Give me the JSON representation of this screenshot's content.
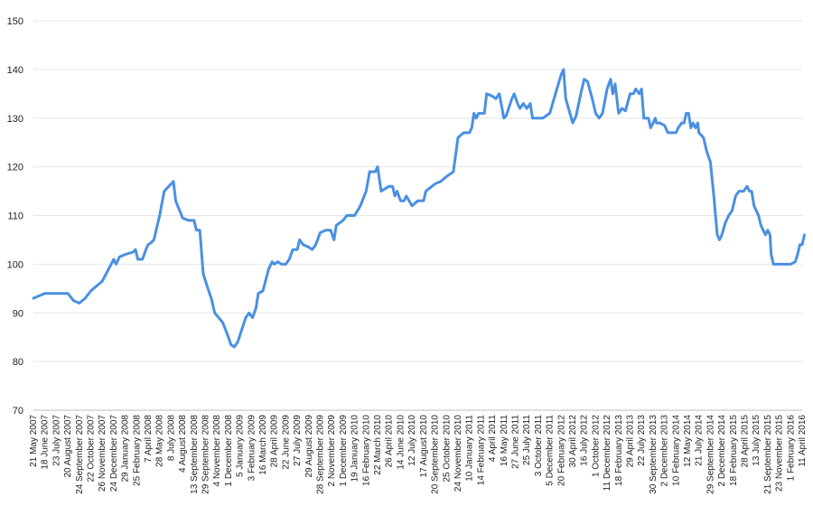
{
  "chart_data": {
    "type": "line",
    "title": "",
    "xlabel": "",
    "ylabel": "",
    "ylim": [
      70,
      150
    ],
    "yticks": [
      70,
      80,
      90,
      100,
      110,
      120,
      130,
      140,
      150
    ],
    "grid": true,
    "legend": "none",
    "colors": {
      "line": "#4a90e2",
      "grid": "#e6e6e6",
      "text": "#222222"
    },
    "x_tick_labels": [
      "21 May 2007",
      "18 June 2007",
      "23 July 2007",
      "20 August 2007",
      "24 September 2007",
      "22 October 2007",
      "26 November 2007",
      "24 December 2007",
      "29 January 2008",
      "25 February 2008",
      "7 April 2008",
      "28 May 2008",
      "8 July 2008",
      "4 August 2008",
      "13 September 2008",
      "29 September 2008",
      "4 November 2008",
      "1 December 2008",
      "5 January 2009",
      "3 February 2009",
      "16 March 2009",
      "28 April 2009",
      "22 June 2009",
      "27 July 2009",
      "29 August 2009",
      "28 September 2009",
      "2 November 2009",
      "1 December 2009",
      "19 January 2010",
      "16 February 2010",
      "22 March 2010",
      "26 April 2010",
      "14 June 2010",
      "12 July 2010",
      "17 August 2010",
      "20 September 2010",
      "25 October 2010",
      "24 November 2010",
      "10 January 2011",
      "14 February 2011",
      "4 April 2011",
      "16 May 2011",
      "27 June 2011",
      "25 July 2011",
      "3 October 2011",
      "5 December 2011",
      "20 February 2012",
      "30 April 2012",
      "16 July 2012",
      "1 October 2012",
      "11 December 2012",
      "18 February 2013",
      "29 April 2013",
      "22 July 2013",
      "30 September 2013",
      "2 December 2013",
      "10 February 2014",
      "12 May 2014",
      "21 July 2014",
      "29 September 2014",
      "2 December 2014",
      "18 February 2015",
      "28 April 2015",
      "13 July 2015",
      "21 September 2015",
      "23 November 2015",
      "1 February 2016",
      "11 April 2016"
    ],
    "series": [
      {
        "values": [
          [
            0,
            93
          ],
          [
            0.5,
            93.5
          ],
          [
            1,
            94
          ],
          [
            2,
            94
          ],
          [
            3,
            94
          ],
          [
            3.5,
            92.5
          ],
          [
            4,
            92
          ],
          [
            4.5,
            93
          ],
          [
            5,
            94.5
          ],
          [
            6,
            96.5
          ],
          [
            7,
            101
          ],
          [
            7.2,
            100
          ],
          [
            7.5,
            101.5
          ],
          [
            8,
            102
          ],
          [
            8.7,
            102.5
          ],
          [
            8.9,
            103
          ],
          [
            9.1,
            101
          ],
          [
            9.5,
            101
          ],
          [
            9.8,
            103
          ],
          [
            10,
            104
          ],
          [
            10.3,
            104.5
          ],
          [
            10.5,
            105
          ],
          [
            11,
            110
          ],
          [
            11.4,
            115
          ],
          [
            11.8,
            116
          ],
          [
            12.2,
            117
          ],
          [
            12.4,
            113
          ],
          [
            13,
            109.5
          ],
          [
            13.5,
            109
          ],
          [
            14,
            109
          ],
          [
            14.2,
            107
          ],
          [
            14.5,
            107
          ],
          [
            14.8,
            98
          ],
          [
            15.2,
            95
          ],
          [
            15.5,
            93
          ],
          [
            15.8,
            90
          ],
          [
            16.5,
            88
          ],
          [
            17,
            85
          ],
          [
            17.2,
            83.5
          ],
          [
            17.5,
            83
          ],
          [
            17.8,
            84
          ],
          [
            18.5,
            89
          ],
          [
            18.8,
            90
          ],
          [
            19.1,
            89
          ],
          [
            19.4,
            91
          ],
          [
            19.6,
            94
          ],
          [
            20,
            94.5
          ],
          [
            20.5,
            99
          ],
          [
            20.8,
            100.5
          ],
          [
            21,
            100
          ],
          [
            21.3,
            100.5
          ],
          [
            21.6,
            100
          ],
          [
            22,
            100
          ],
          [
            22.3,
            101
          ],
          [
            22.6,
            103
          ],
          [
            23,
            103
          ],
          [
            23.2,
            105
          ],
          [
            23.5,
            104
          ],
          [
            24,
            103.5
          ],
          [
            24.3,
            103
          ],
          [
            24.6,
            104
          ],
          [
            25,
            106.5
          ],
          [
            25.5,
            107
          ],
          [
            25.9,
            107
          ],
          [
            26.2,
            105
          ],
          [
            26.4,
            108
          ],
          [
            27,
            109
          ],
          [
            27.3,
            110
          ],
          [
            28,
            110
          ],
          [
            28.5,
            112
          ],
          [
            29,
            115
          ],
          [
            29.3,
            119
          ],
          [
            29.8,
            119
          ],
          [
            30,
            120
          ],
          [
            30.3,
            115
          ],
          [
            31,
            116
          ],
          [
            31.3,
            116
          ],
          [
            31.5,
            114
          ],
          [
            31.7,
            115
          ],
          [
            32,
            113
          ],
          [
            32.3,
            113
          ],
          [
            32.5,
            114
          ],
          [
            33,
            112
          ],
          [
            33.5,
            113
          ],
          [
            34,
            113
          ],
          [
            34.2,
            115
          ],
          [
            35,
            116.5
          ],
          [
            35.5,
            117
          ],
          [
            36,
            118
          ],
          [
            36.3,
            118.5
          ],
          [
            36.6,
            119
          ],
          [
            37,
            126
          ],
          [
            37.5,
            127
          ],
          [
            38,
            127
          ],
          [
            38.2,
            128
          ],
          [
            38.4,
            131
          ],
          [
            38.6,
            130
          ],
          [
            38.8,
            131
          ],
          [
            39.3,
            131
          ],
          [
            39.5,
            135
          ],
          [
            40,
            134.5
          ],
          [
            40.3,
            134
          ],
          [
            40.6,
            135
          ],
          [
            41,
            130
          ],
          [
            41.2,
            130.5
          ],
          [
            41.7,
            134
          ],
          [
            41.9,
            135
          ],
          [
            42.2,
            133
          ],
          [
            42.4,
            132
          ],
          [
            42.7,
            133
          ],
          [
            43,
            132
          ],
          [
            43.3,
            133
          ],
          [
            43.5,
            130
          ],
          [
            44,
            130
          ],
          [
            44.4,
            130
          ],
          [
            45,
            131
          ],
          [
            45.5,
            135
          ],
          [
            46,
            139
          ],
          [
            46.2,
            140
          ],
          [
            46.4,
            134
          ],
          [
            47,
            129
          ],
          [
            47.3,
            130.5
          ],
          [
            47.7,
            135
          ],
          [
            48,
            138
          ],
          [
            48.3,
            137.5
          ],
          [
            48.7,
            134
          ],
          [
            49,
            131
          ],
          [
            49.3,
            130
          ],
          [
            49.6,
            131
          ],
          [
            50,
            136
          ],
          [
            50.3,
            138
          ],
          [
            50.5,
            135
          ],
          [
            50.7,
            137
          ],
          [
            51,
            131
          ],
          [
            51.3,
            132
          ],
          [
            51.6,
            131.5
          ],
          [
            52,
            135
          ],
          [
            52.3,
            135
          ],
          [
            52.5,
            136
          ],
          [
            52.8,
            135
          ],
          [
            53,
            136
          ],
          [
            53.2,
            130
          ],
          [
            53.6,
            130
          ],
          [
            53.8,
            128
          ],
          [
            54,
            129
          ],
          [
            54.2,
            130
          ],
          [
            54.3,
            129
          ],
          [
            54.6,
            129
          ],
          [
            55,
            128.5
          ],
          [
            55.3,
            127
          ],
          [
            55.7,
            127
          ],
          [
            56,
            127
          ],
          [
            56.2,
            128
          ],
          [
            56.5,
            129
          ],
          [
            56.7,
            129
          ],
          [
            56.9,
            131
          ],
          [
            57.1,
            131
          ],
          [
            57.3,
            128
          ],
          [
            57.5,
            129
          ],
          [
            57.7,
            128
          ],
          [
            57.9,
            129
          ],
          [
            58,
            127
          ],
          [
            58.4,
            126
          ],
          [
            58.7,
            123
          ],
          [
            59,
            121
          ],
          [
            59.3,
            114
          ],
          [
            59.6,
            106
          ],
          [
            59.8,
            105
          ],
          [
            60,
            106
          ],
          [
            60.3,
            108.5
          ],
          [
            60.6,
            110
          ],
          [
            60.9,
            111
          ],
          [
            61.2,
            114
          ],
          [
            61.5,
            115
          ],
          [
            61.9,
            115
          ],
          [
            62.2,
            116
          ],
          [
            62.4,
            115
          ],
          [
            62.6,
            115
          ],
          [
            62.8,
            112
          ],
          [
            63,
            111
          ],
          [
            63.2,
            110
          ],
          [
            63.4,
            108
          ],
          [
            63.6,
            107
          ],
          [
            63.8,
            106
          ],
          [
            64,
            107
          ],
          [
            64.2,
            106
          ],
          [
            64.3,
            102
          ],
          [
            64.5,
            100
          ],
          [
            65,
            100
          ],
          [
            66,
            100
          ],
          [
            66.4,
            100.5
          ],
          [
            66.6,
            102
          ],
          [
            66.8,
            104
          ],
          [
            67,
            104
          ],
          [
            67.2,
            106
          ]
        ]
      }
    ]
  }
}
